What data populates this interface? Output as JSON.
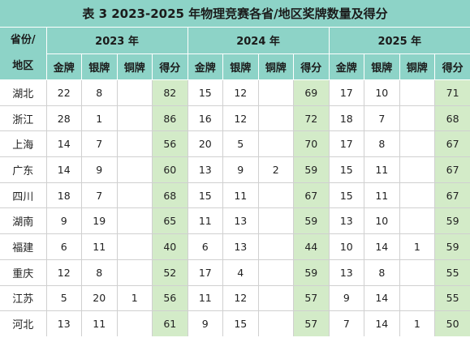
{
  "colors": {
    "header": "#8dd3c7",
    "score_column": "#d3ebc8"
  },
  "chart_data": {
    "type": "table",
    "title": "表 3 2023-2025 年物理竞赛各省/地区奖牌数量及得分",
    "row_header_label": [
      "省份/",
      "地区"
    ],
    "column_groups": [
      "2023 年",
      "2024 年",
      "2025 年"
    ],
    "columns": [
      "金牌",
      "银牌",
      "铜牌",
      "得分"
    ],
    "rows": [
      {
        "region": "湖北",
        "values": [
          22,
          8,
          null,
          82,
          15,
          12,
          null,
          69,
          17,
          10,
          null,
          71
        ]
      },
      {
        "region": "浙江",
        "values": [
          28,
          1,
          null,
          86,
          16,
          12,
          null,
          72,
          18,
          7,
          null,
          68
        ]
      },
      {
        "region": "上海",
        "values": [
          14,
          7,
          null,
          56,
          20,
          5,
          null,
          70,
          17,
          8,
          null,
          67
        ]
      },
      {
        "region": "广东",
        "values": [
          14,
          9,
          null,
          60,
          13,
          9,
          2,
          59,
          15,
          11,
          null,
          67
        ]
      },
      {
        "region": "四川",
        "values": [
          18,
          7,
          null,
          68,
          15,
          11,
          null,
          67,
          15,
          11,
          null,
          67
        ]
      },
      {
        "region": "湖南",
        "values": [
          9,
          19,
          null,
          65,
          11,
          13,
          null,
          59,
          13,
          10,
          null,
          59
        ]
      },
      {
        "region": "福建",
        "values": [
          6,
          11,
          null,
          40,
          6,
          13,
          null,
          44,
          10,
          14,
          1,
          59
        ]
      },
      {
        "region": "重庆",
        "values": [
          12,
          8,
          null,
          52,
          17,
          4,
          null,
          59,
          13,
          8,
          null,
          55
        ]
      },
      {
        "region": "江苏",
        "values": [
          5,
          20,
          1,
          56,
          11,
          12,
          null,
          57,
          9,
          14,
          null,
          55
        ]
      },
      {
        "region": "河北",
        "values": [
          13,
          11,
          null,
          61,
          9,
          15,
          null,
          57,
          7,
          14,
          1,
          50
        ]
      }
    ]
  }
}
